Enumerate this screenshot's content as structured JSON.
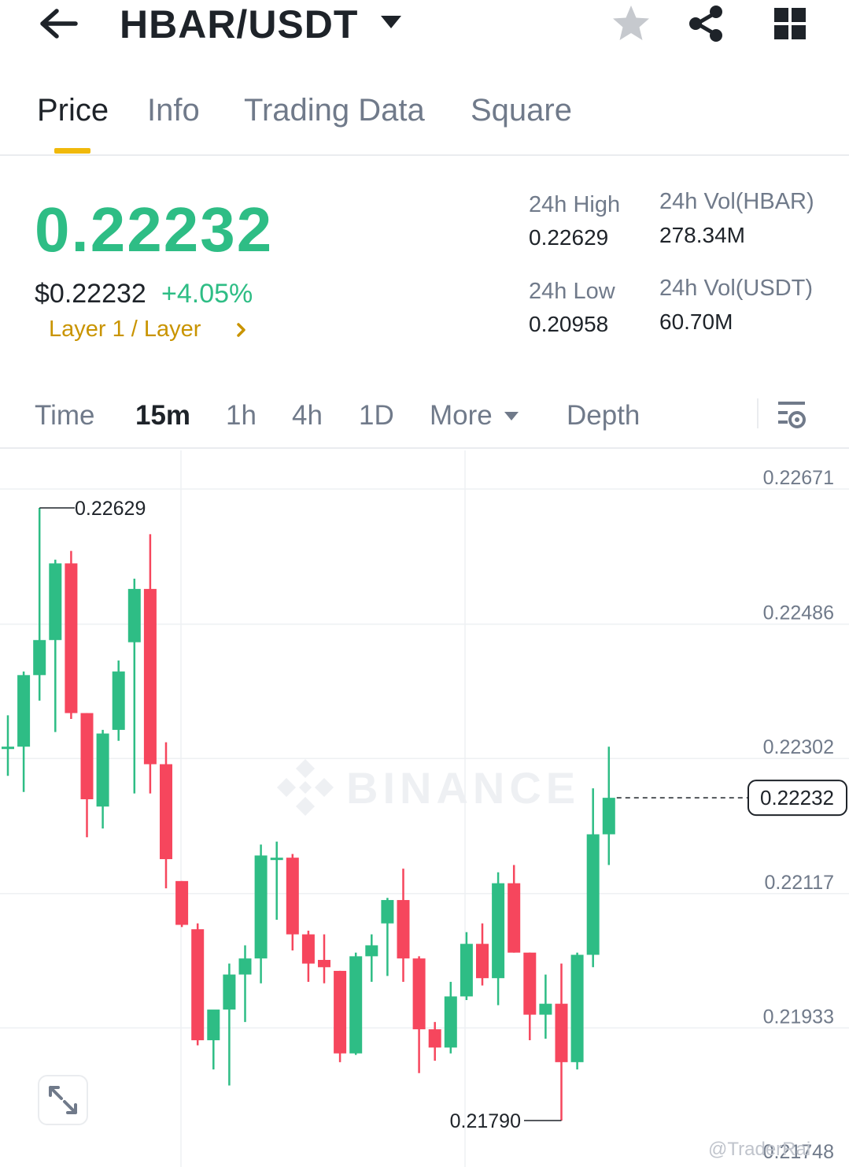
{
  "header": {
    "pair": "HBAR/USDT",
    "icons": {
      "back": "arrow-left-icon",
      "dropdown": "caret-down-icon",
      "favorite": "star-icon",
      "share": "share-icon",
      "menu": "grid-icon"
    }
  },
  "tabs": [
    {
      "label": "Price",
      "active": true
    },
    {
      "label": "Info",
      "active": false
    },
    {
      "label": "Trading Data",
      "active": false
    },
    {
      "label": "Square",
      "active": false
    }
  ],
  "price": {
    "last": "0.22232",
    "usd": "$0.22232",
    "change": "+4.05%",
    "category": "Layer 1 / Layer",
    "color_up": "#2ebd85",
    "color_down": "#f6465d"
  },
  "stats": {
    "high_label": "24h High",
    "high_value": "0.22629",
    "low_label": "24h Low",
    "low_value": "0.20958",
    "vol_base_label": "24h Vol(HBAR)",
    "vol_base_value": "278.34M",
    "vol_quote_label": "24h Vol(USDT)",
    "vol_quote_value": "60.70M"
  },
  "intervals": {
    "time": "Time",
    "m15": "15m",
    "h1": "1h",
    "h4": "4h",
    "d1": "1D",
    "more": "More",
    "depth": "Depth",
    "selected": "15m"
  },
  "chart_data": {
    "type": "candlestick",
    "y_ticks": [
      "0.22671",
      "0.22486",
      "0.22302",
      "0.22117",
      "0.21933",
      "0.21748"
    ],
    "ylim": [
      0.21748,
      0.22671
    ],
    "current_price_label": "0.22232",
    "high_marker": "0.22629",
    "low_marker": "0.21790",
    "watermark": "BINANCE",
    "candles": [
      {
        "o": 0.22302,
        "h": 0.22345,
        "l": 0.22262,
        "c": 0.22302
      },
      {
        "o": 0.22302,
        "h": 0.22405,
        "l": 0.2224,
        "c": 0.224
      },
      {
        "o": 0.224,
        "h": 0.22629,
        "l": 0.22365,
        "c": 0.22448
      },
      {
        "o": 0.22448,
        "h": 0.22558,
        "l": 0.22322,
        "c": 0.22553
      },
      {
        "o": 0.22553,
        "h": 0.2257,
        "l": 0.2234,
        "c": 0.22348
      },
      {
        "o": 0.22348,
        "h": 0.22348,
        "l": 0.22178,
        "c": 0.2223
      },
      {
        "o": 0.2222,
        "h": 0.22325,
        "l": 0.2219,
        "c": 0.2232
      },
      {
        "o": 0.22325,
        "h": 0.2242,
        "l": 0.2231,
        "c": 0.22405
      },
      {
        "o": 0.22445,
        "h": 0.22532,
        "l": 0.22238,
        "c": 0.22518
      },
      {
        "o": 0.22518,
        "h": 0.22593,
        "l": 0.22238,
        "c": 0.22278
      },
      {
        "o": 0.22278,
        "h": 0.22308,
        "l": 0.22108,
        "c": 0.22148
      },
      {
        "o": 0.22118,
        "h": 0.22118,
        "l": 0.22055,
        "c": 0.22058
      },
      {
        "o": 0.22052,
        "h": 0.2206,
        "l": 0.21893,
        "c": 0.219
      },
      {
        "o": 0.219,
        "h": 0.2194,
        "l": 0.2186,
        "c": 0.21942
      },
      {
        "o": 0.21942,
        "h": 0.22005,
        "l": 0.21838,
        "c": 0.2199
      },
      {
        "o": 0.2199,
        "h": 0.2203,
        "l": 0.21925,
        "c": 0.22012
      },
      {
        "o": 0.22012,
        "h": 0.22168,
        "l": 0.21978,
        "c": 0.22153
      },
      {
        "o": 0.2215,
        "h": 0.22172,
        "l": 0.22065,
        "c": 0.2215
      },
      {
        "o": 0.2215,
        "h": 0.22155,
        "l": 0.22023,
        "c": 0.22045
      },
      {
        "o": 0.22045,
        "h": 0.2205,
        "l": 0.2198,
        "c": 0.22005
      },
      {
        "o": 0.2201,
        "h": 0.22045,
        "l": 0.21978,
        "c": 0.22
      },
      {
        "o": 0.21995,
        "h": 0.21995,
        "l": 0.2187,
        "c": 0.21882
      },
      {
        "o": 0.21882,
        "h": 0.2202,
        "l": 0.2188,
        "c": 0.22015
      },
      {
        "o": 0.22015,
        "h": 0.22045,
        "l": 0.2198,
        "c": 0.2203
      },
      {
        "o": 0.2206,
        "h": 0.22095,
        "l": 0.21988,
        "c": 0.22092
      },
      {
        "o": 0.22092,
        "h": 0.22135,
        "l": 0.2198,
        "c": 0.22012
      },
      {
        "o": 0.22012,
        "h": 0.22015,
        "l": 0.21855,
        "c": 0.21915
      },
      {
        "o": 0.21915,
        "h": 0.21925,
        "l": 0.21872,
        "c": 0.2189
      },
      {
        "o": 0.2189,
        "h": 0.2198,
        "l": 0.21882,
        "c": 0.2196
      },
      {
        "o": 0.2196,
        "h": 0.22048,
        "l": 0.21955,
        "c": 0.22032
      },
      {
        "o": 0.22032,
        "h": 0.2206,
        "l": 0.21975,
        "c": 0.21985
      },
      {
        "o": 0.21985,
        "h": 0.2213,
        "l": 0.21948,
        "c": 0.22115
      },
      {
        "o": 0.22115,
        "h": 0.2214,
        "l": 0.2202,
        "c": 0.2202
      },
      {
        "o": 0.2202,
        "h": 0.2202,
        "l": 0.219,
        "c": 0.21935
      },
      {
        "o": 0.21935,
        "h": 0.2199,
        "l": 0.21902,
        "c": 0.2195
      },
      {
        "o": 0.2195,
        "h": 0.22005,
        "l": 0.2179,
        "c": 0.2187
      },
      {
        "o": 0.2187,
        "h": 0.2202,
        "l": 0.2186,
        "c": 0.22017
      },
      {
        "o": 0.22017,
        "h": 0.22245,
        "l": 0.22,
        "c": 0.22182
      },
      {
        "o": 0.22182,
        "h": 0.22302,
        "l": 0.2214,
        "c": 0.22232
      }
    ]
  },
  "footer": {
    "watermark_user": "@TraderRai",
    "icons": {
      "expand": "expand-icon"
    }
  }
}
